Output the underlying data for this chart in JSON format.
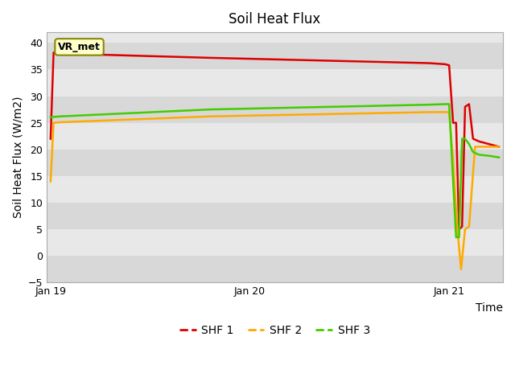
{
  "title": "Soil Heat Flux",
  "xlabel": "Time",
  "ylabel": "Soil Heat Flux (W/m2)",
  "ylim": [
    -5,
    42
  ],
  "yticks": [
    -5,
    0,
    5,
    10,
    15,
    20,
    25,
    30,
    35,
    40
  ],
  "annotation_text": "VR_met",
  "background_color_light": "#e8e8e8",
  "background_color_dark": "#d8d8d8",
  "legend_labels": [
    "SHF 1",
    "SHF 2",
    "SHF 3"
  ],
  "shf1_color": "#dd0000",
  "shf2_color": "#ffaa00",
  "shf3_color": "#44cc00",
  "line_width": 1.8,
  "shf1_t": [
    0.0,
    0.015,
    0.05,
    0.8,
    1.9,
    1.98,
    2.0,
    2.02,
    2.035,
    2.05,
    2.065,
    2.08,
    2.1,
    2.12,
    2.15,
    2.2,
    2.25
  ],
  "shf1_v": [
    22.0,
    38.2,
    38.0,
    37.2,
    36.2,
    36.0,
    35.8,
    25.0,
    25.0,
    5.0,
    5.5,
    28.0,
    28.5,
    22.0,
    21.5,
    21.0,
    20.5
  ],
  "shf2_t": [
    0.0,
    0.015,
    0.05,
    0.8,
    1.9,
    1.98,
    2.0,
    2.02,
    2.04,
    2.06,
    2.08,
    2.1,
    2.13,
    2.17,
    2.2,
    2.25
  ],
  "shf2_v": [
    14.0,
    25.0,
    25.1,
    26.2,
    27.0,
    27.0,
    27.0,
    18.0,
    5.5,
    -2.5,
    5.0,
    5.5,
    20.5,
    20.5,
    20.5,
    20.5
  ],
  "shf3_t": [
    0.0,
    0.015,
    0.05,
    0.8,
    1.9,
    1.98,
    2.0,
    2.02,
    2.035,
    2.05,
    2.065,
    2.08,
    2.1,
    2.12,
    2.15,
    2.2,
    2.25
  ],
  "shf3_v": [
    26.0,
    26.1,
    26.2,
    27.5,
    28.4,
    28.5,
    28.5,
    14.0,
    3.5,
    3.5,
    22.0,
    22.0,
    21.0,
    19.5,
    19.0,
    18.8,
    18.5
  ]
}
